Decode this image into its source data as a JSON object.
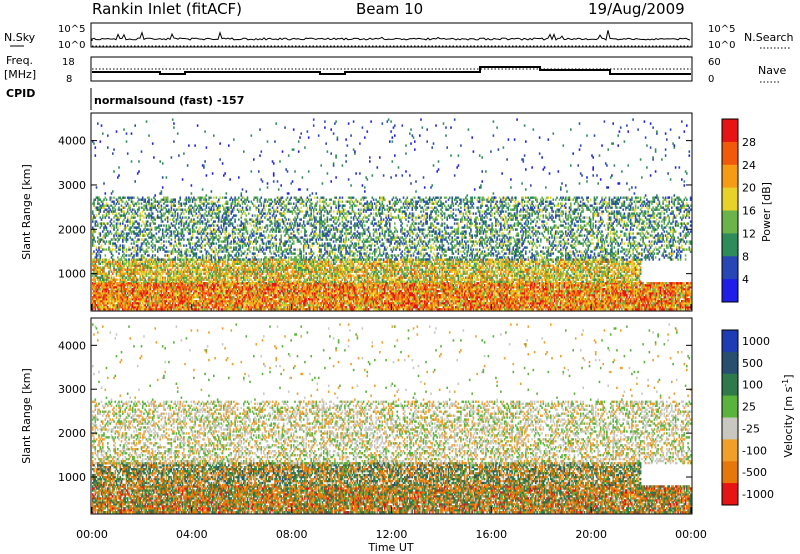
{
  "header": {
    "station": "Rankin Inlet (fitACF)",
    "beam": "Beam 10",
    "date": "19/Aug/2009"
  },
  "strip_labels": {
    "nsky": "N.Sky",
    "nsky_ticks": [
      "10^5",
      "10^0"
    ],
    "nsky_right_ticks": [
      "10^5",
      "10^0"
    ],
    "nsearch": "N.Search",
    "freq_line1": "Freq.",
    "freq_line2": "[MHz]",
    "freq_ticks": [
      "18",
      "8"
    ],
    "nave": "Nave",
    "nave_ticks": [
      "60",
      "0"
    ],
    "cpid": "CPID",
    "cpid_value": "normalsound (fast) -157"
  },
  "colors": {
    "power_scale": [
      "#1e1ee6",
      "#2846b4",
      "#2e8c5a",
      "#6ab44a",
      "#e6d228",
      "#f59b14",
      "#f05a0a",
      "#e61414"
    ],
    "velocity_scale": [
      "#1e3cb4",
      "#28506e",
      "#2e7a4a",
      "#5ab43c",
      "#c8c8c0",
      "#f0a028",
      "#e6780a",
      "#e61414"
    ]
  },
  "chart_data": [
    {
      "type": "heatmap",
      "name": "power",
      "ylabel": "Slant Range [km]",
      "xlabel": "Time UT",
      "xlim_hours": [
        0,
        24
      ],
      "ylim_km": [
        180,
        4600
      ],
      "x_ticks": [
        "00:00",
        "04:00",
        "08:00",
        "12:00",
        "16:00",
        "20:00",
        "00:00"
      ],
      "y_ticks": [
        1000,
        2000,
        3000,
        4000
      ],
      "colorbar": {
        "label": "Power [dB]",
        "tick_labels": [
          "4",
          "8",
          "12",
          "16",
          "20",
          "24",
          "28"
        ],
        "range": [
          0,
          32
        ]
      },
      "regions": [
        {
          "t": [
            0,
            24
          ],
          "r": [
            180,
            800
          ],
          "min": 14,
          "max": 32,
          "density": 0.9
        },
        {
          "t": [
            0,
            22
          ],
          "r": [
            800,
            1300
          ],
          "min": 10,
          "max": 26,
          "density": 0.7
        },
        {
          "t": [
            0,
            24
          ],
          "r": [
            1300,
            2700
          ],
          "min": 4,
          "max": 18,
          "density": 0.4
        },
        {
          "t": [
            0,
            24
          ],
          "r": [
            2700,
            4500
          ],
          "min": 0,
          "max": 12,
          "density": 0.02
        }
      ]
    },
    {
      "type": "heatmap",
      "name": "velocity",
      "ylabel": "Slant Range [km]",
      "xlabel": "Time UT",
      "xlim_hours": [
        0,
        24
      ],
      "ylim_km": [
        180,
        4600
      ],
      "x_ticks": [
        "00:00",
        "04:00",
        "08:00",
        "12:00",
        "16:00",
        "20:00",
        "00:00"
      ],
      "y_ticks": [
        1000,
        2000,
        3000,
        4000
      ],
      "colorbar": {
        "label": "Velocity [m s-1]",
        "label_main": "Velocity [m s",
        "label_sup": "-1",
        "label_close": "]",
        "tick_labels": [
          "1000",
          "500",
          "100",
          "25",
          "-25",
          "-100",
          "-500",
          "-1000"
        ]
      },
      "regions": [
        {
          "t": [
            0,
            24
          ],
          "r": [
            180,
            800
          ],
          "min": -600,
          "max": 400,
          "density": 0.85
        },
        {
          "t": [
            0,
            22
          ],
          "r": [
            800,
            1300
          ],
          "min": -500,
          "max": 600,
          "density": 0.7
        },
        {
          "t": [
            0,
            24
          ],
          "r": [
            1300,
            2700
          ],
          "min": -60,
          "max": 60,
          "density": 0.4
        },
        {
          "t": [
            0,
            24
          ],
          "r": [
            2700,
            4500
          ],
          "min": -100,
          "max": 100,
          "density": 0.02
        }
      ]
    }
  ]
}
